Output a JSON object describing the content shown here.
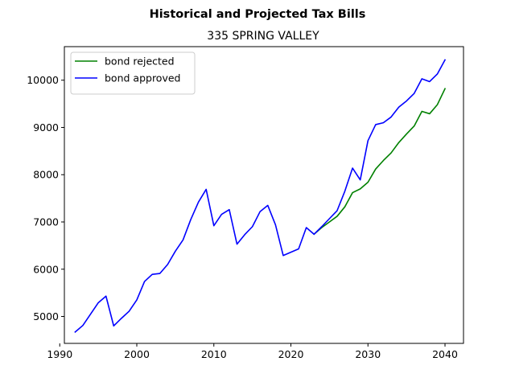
{
  "chart_data": {
    "type": "line",
    "suptitle": "Historical and Projected Tax Bills",
    "title": "335 SPRING VALLEY",
    "xlabel": "",
    "ylabel": "",
    "xlim": [
      1990.6,
      2042.4
    ],
    "ylim": [
      4430,
      10710
    ],
    "xticks": [
      1990,
      2000,
      2010,
      2020,
      2030,
      2040
    ],
    "yticks": [
      5000,
      6000,
      7000,
      8000,
      9000,
      10000
    ],
    "grid": false,
    "legend_position": "upper-left",
    "series": [
      {
        "name": "bond rejected",
        "color": "#008000",
        "x": [
          2023,
          2024,
          2025,
          2026,
          2027,
          2028,
          2029,
          2030,
          2031,
          2032,
          2033,
          2034,
          2035,
          2036,
          2037,
          2038,
          2039,
          2040
        ],
        "y": [
          6740,
          6880,
          7000,
          7120,
          7320,
          7620,
          7700,
          7840,
          8120,
          8300,
          8460,
          8680,
          8860,
          9030,
          9340,
          9290,
          9480,
          9820
        ]
      },
      {
        "name": "bond approved",
        "color": "#0000ff",
        "x": [
          1992,
          1993,
          1994,
          1995,
          1996,
          1997,
          1998,
          1999,
          2000,
          2001,
          2002,
          2003,
          2004,
          2005,
          2006,
          2007,
          2008,
          2009,
          2010,
          2011,
          2012,
          2013,
          2014,
          2015,
          2016,
          2017,
          2018,
          2019,
          2020,
          2021,
          2022,
          2023,
          2024,
          2025,
          2026,
          2027,
          2028,
          2029,
          2030,
          2031,
          2032,
          2033,
          2034,
          2035,
          2036,
          2037,
          2038,
          2039,
          2040
        ],
        "y": [
          4670,
          4810,
          5050,
          5290,
          5430,
          4800,
          4960,
          5110,
          5350,
          5740,
          5890,
          5910,
          6100,
          6380,
          6620,
          7050,
          7420,
          7690,
          6920,
          7160,
          7260,
          6530,
          6730,
          6900,
          7220,
          7350,
          6940,
          6290,
          6360,
          6430,
          6880,
          6740,
          6900,
          7070,
          7240,
          7650,
          8140,
          7890,
          8720,
          9060,
          9100,
          9220,
          9430,
          9560,
          9720,
          10030,
          9970,
          10130,
          10430
        ]
      }
    ]
  }
}
